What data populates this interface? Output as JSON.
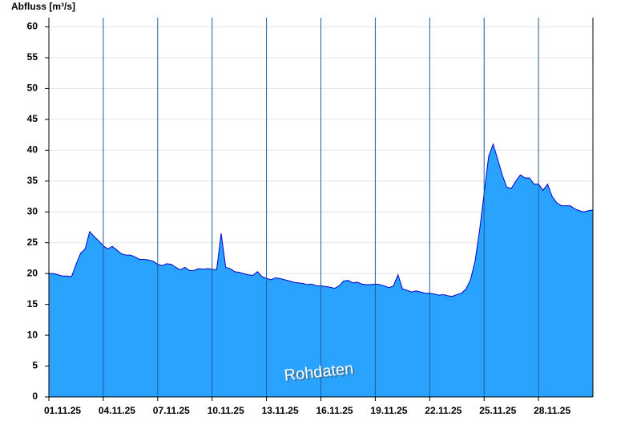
{
  "chart_data": {
    "type": "area",
    "title": "Abfluss [m³/s]",
    "watermark": "Rohdaten",
    "categories": [
      "01.11.25",
      null,
      null,
      null,
      null,
      null,
      null,
      null,
      null,
      null,
      null,
      null,
      "04.11.25",
      null,
      null,
      null,
      null,
      null,
      null,
      null,
      null,
      null,
      null,
      null,
      "07.11.25",
      null,
      null,
      null,
      null,
      null,
      null,
      null,
      null,
      null,
      null,
      null,
      "10.11.25",
      null,
      null,
      null,
      null,
      null,
      null,
      null,
      null,
      null,
      null,
      null,
      "13.11.25",
      null,
      null,
      null,
      null,
      null,
      null,
      null,
      null,
      null,
      null,
      null,
      "16.11.25",
      null,
      null,
      null,
      null,
      null,
      null,
      null,
      null,
      null,
      null,
      null,
      "19.11.25",
      null,
      null,
      null,
      null,
      null,
      null,
      null,
      null,
      null,
      null,
      null,
      "22.11.25",
      null,
      null,
      null,
      null,
      null,
      null,
      null,
      null,
      null,
      null,
      null,
      "25.11.25",
      null,
      null,
      null,
      null,
      null,
      null,
      null,
      null,
      null,
      null,
      null,
      "28.11.25",
      null,
      null,
      null,
      null,
      null,
      null,
      null,
      null,
      null,
      null,
      null,
      null
    ],
    "series": [
      {
        "color": "#29a3ff",
        "line_color": "#0000cc",
        "values": [
          20,
          20,
          19.8,
          19.6,
          19.6,
          19.5,
          21.5,
          23.3,
          24,
          26.8,
          26,
          25.3,
          24.5,
          24,
          24.4,
          23.8,
          23.2,
          23,
          23,
          22.7,
          22.3,
          22.3,
          22.2,
          22,
          21.5,
          21.3,
          21.6,
          21.5,
          21,
          20.6,
          21,
          20.5,
          20.5,
          20.8,
          20.7,
          20.8,
          20.7,
          20.6,
          26.5,
          21,
          20.8,
          20.3,
          20.2,
          20,
          19.8,
          19.7,
          20.3,
          19.5,
          19.2,
          19,
          19.3,
          19.2,
          19,
          18.8,
          18.6,
          18.5,
          18.4,
          18.2,
          18.3,
          18,
          18,
          17.9,
          17.8,
          17.6,
          18,
          18.8,
          18.9,
          18.5,
          18.6,
          18.3,
          18.2,
          18.2,
          18.3,
          18.2,
          18,
          17.7,
          18,
          19.8,
          17.5,
          17.3,
          17,
          17.2,
          17,
          16.8,
          16.8,
          16.7,
          16.5,
          16.6,
          16.4,
          16.3,
          16.6,
          16.8,
          17.5,
          19,
          22,
          27,
          33,
          39,
          41,
          38.5,
          36,
          34,
          33.8,
          35,
          36,
          35.5,
          35.5,
          34.5,
          34.5,
          33.5,
          34.5,
          32.5,
          31.5,
          31,
          31,
          31,
          30.5,
          30.2,
          30,
          30.2,
          30.3
        ]
      }
    ],
    "ylim": [
      0,
      61.5
    ],
    "yticks": [
      0,
      5,
      10,
      15,
      20,
      25,
      30,
      35,
      40,
      45,
      50,
      55,
      60
    ],
    "grid": true
  }
}
